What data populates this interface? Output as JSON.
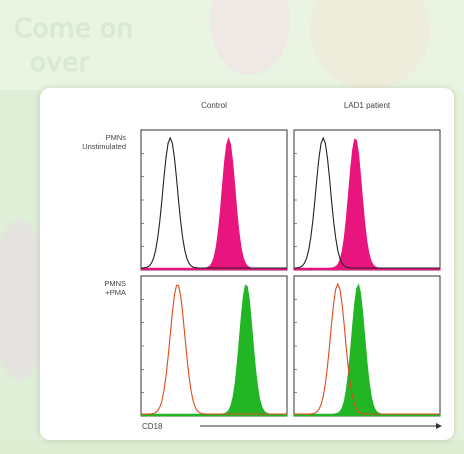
{
  "background": {
    "line1": "Come on",
    "line2": "over"
  },
  "colors": {
    "unstimulated_fill": "#e8157e",
    "pma_fill": "#22b524",
    "control_outline_black": "#222222",
    "control_outline_orange": "#e24a1e"
  },
  "chart_data": {
    "type": "area",
    "columns": [
      "Control",
      "LAD1 patient"
    ],
    "rows": [
      "PMNs Unstimulated",
      "PMNS +PMA"
    ],
    "xlabel": "CD18",
    "panels": [
      {
        "row": "PMNs Unstimulated",
        "column": "Control",
        "outline_peak": 0.2,
        "outline_color": "black",
        "filled_peak": 0.6,
        "filled_color": "magenta"
      },
      {
        "row": "PMNs Unstimulated",
        "column": "LAD1 patient",
        "outline_peak": 0.2,
        "outline_color": "black",
        "filled_peak": 0.42,
        "filled_color": "magenta"
      },
      {
        "row": "PMNS +PMA",
        "column": "Control",
        "outline_peak": 0.25,
        "outline_color": "orange",
        "filled_peak": 0.72,
        "filled_color": "green"
      },
      {
        "row": "PMNS +PMA",
        "column": "LAD1 patient",
        "outline_peak": 0.3,
        "outline_color": "orange",
        "filled_peak": 0.44,
        "filled_color": "green"
      }
    ]
  }
}
